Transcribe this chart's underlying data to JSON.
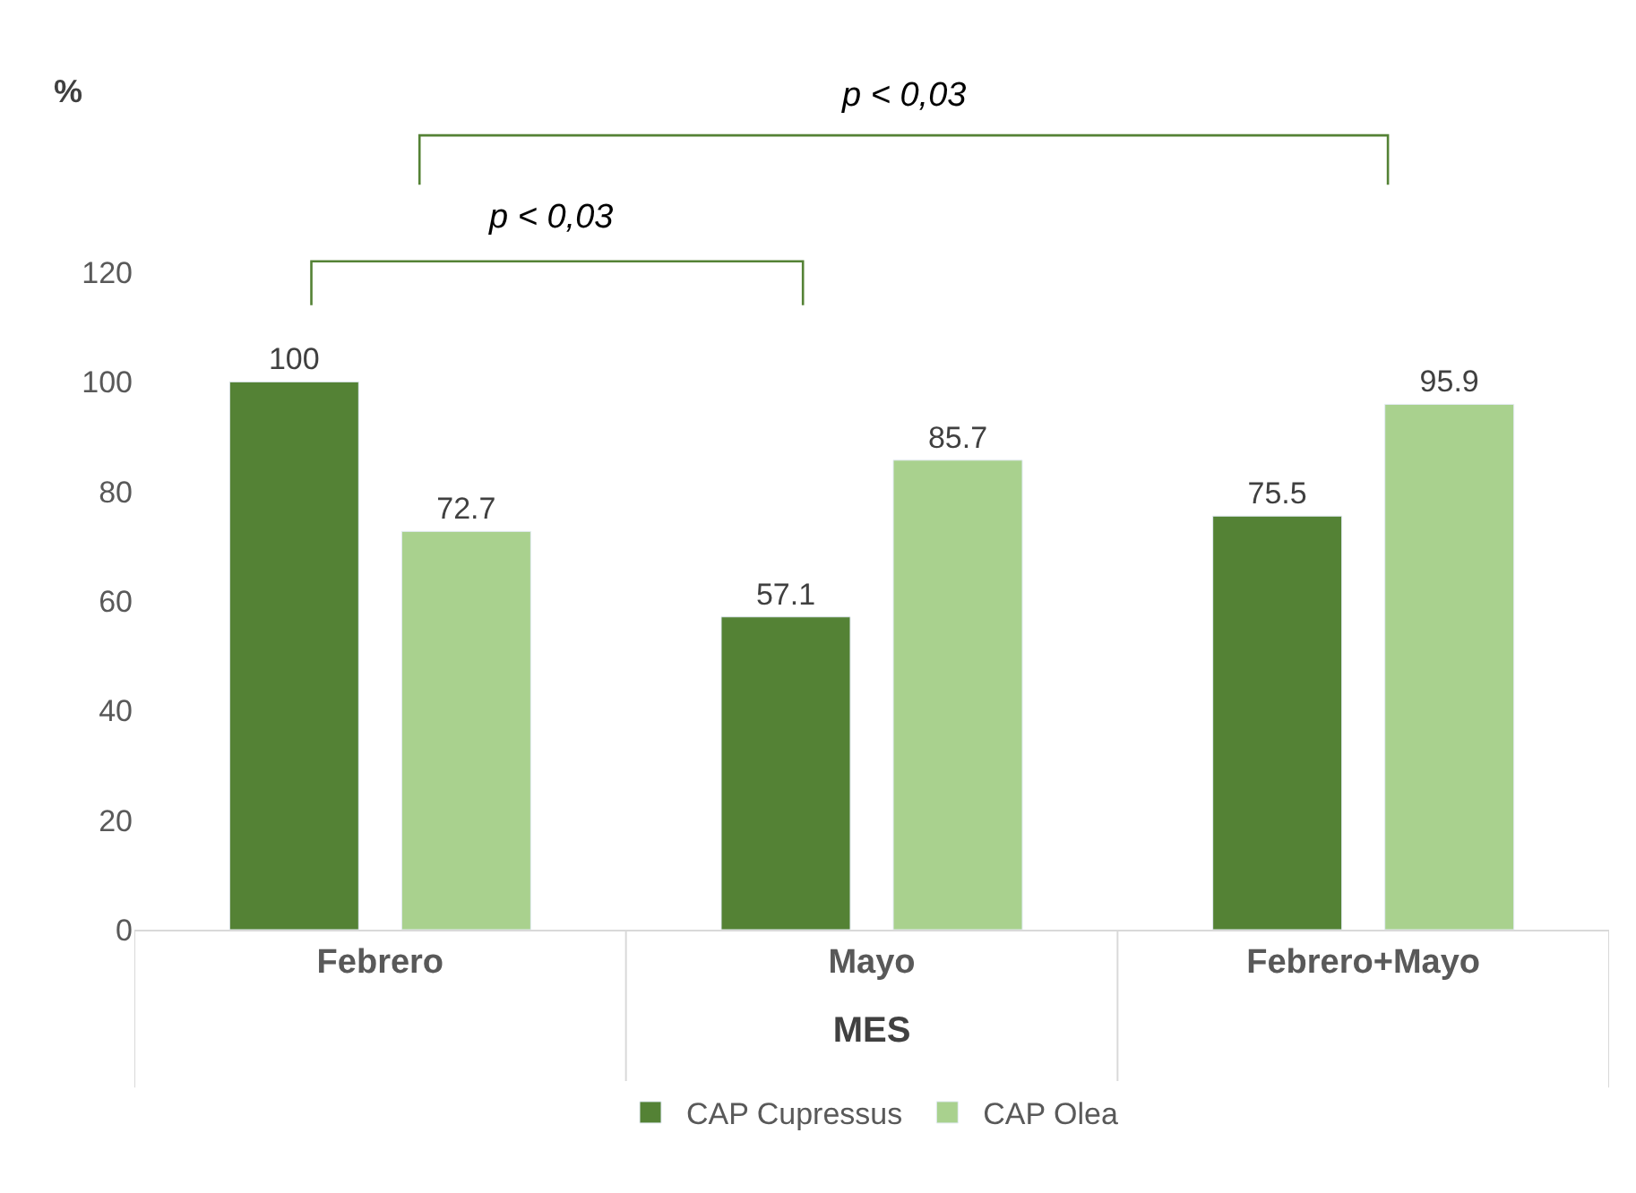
{
  "chart_data": {
    "type": "bar",
    "xlabel": "MES",
    "ylabel": "%",
    "categories": [
      "Febrero",
      "Mayo",
      "Febrero+Mayo"
    ],
    "series": [
      {
        "name": "CAP Cupressus",
        "color": "#548235",
        "values": [
          100,
          57.1,
          75.5
        ]
      },
      {
        "name": "CAP Olea",
        "color": "#a9d18e",
        "values": [
          72.7,
          85.7,
          95.9
        ]
      }
    ],
    "ylim": [
      0,
      120
    ],
    "yticks": [
      0,
      20,
      40,
      60,
      80,
      100,
      120
    ],
    "data_labels": true,
    "grid": false,
    "legend": "bottom",
    "annotations": [
      "p < 0,03",
      "p < 0,03"
    ]
  }
}
